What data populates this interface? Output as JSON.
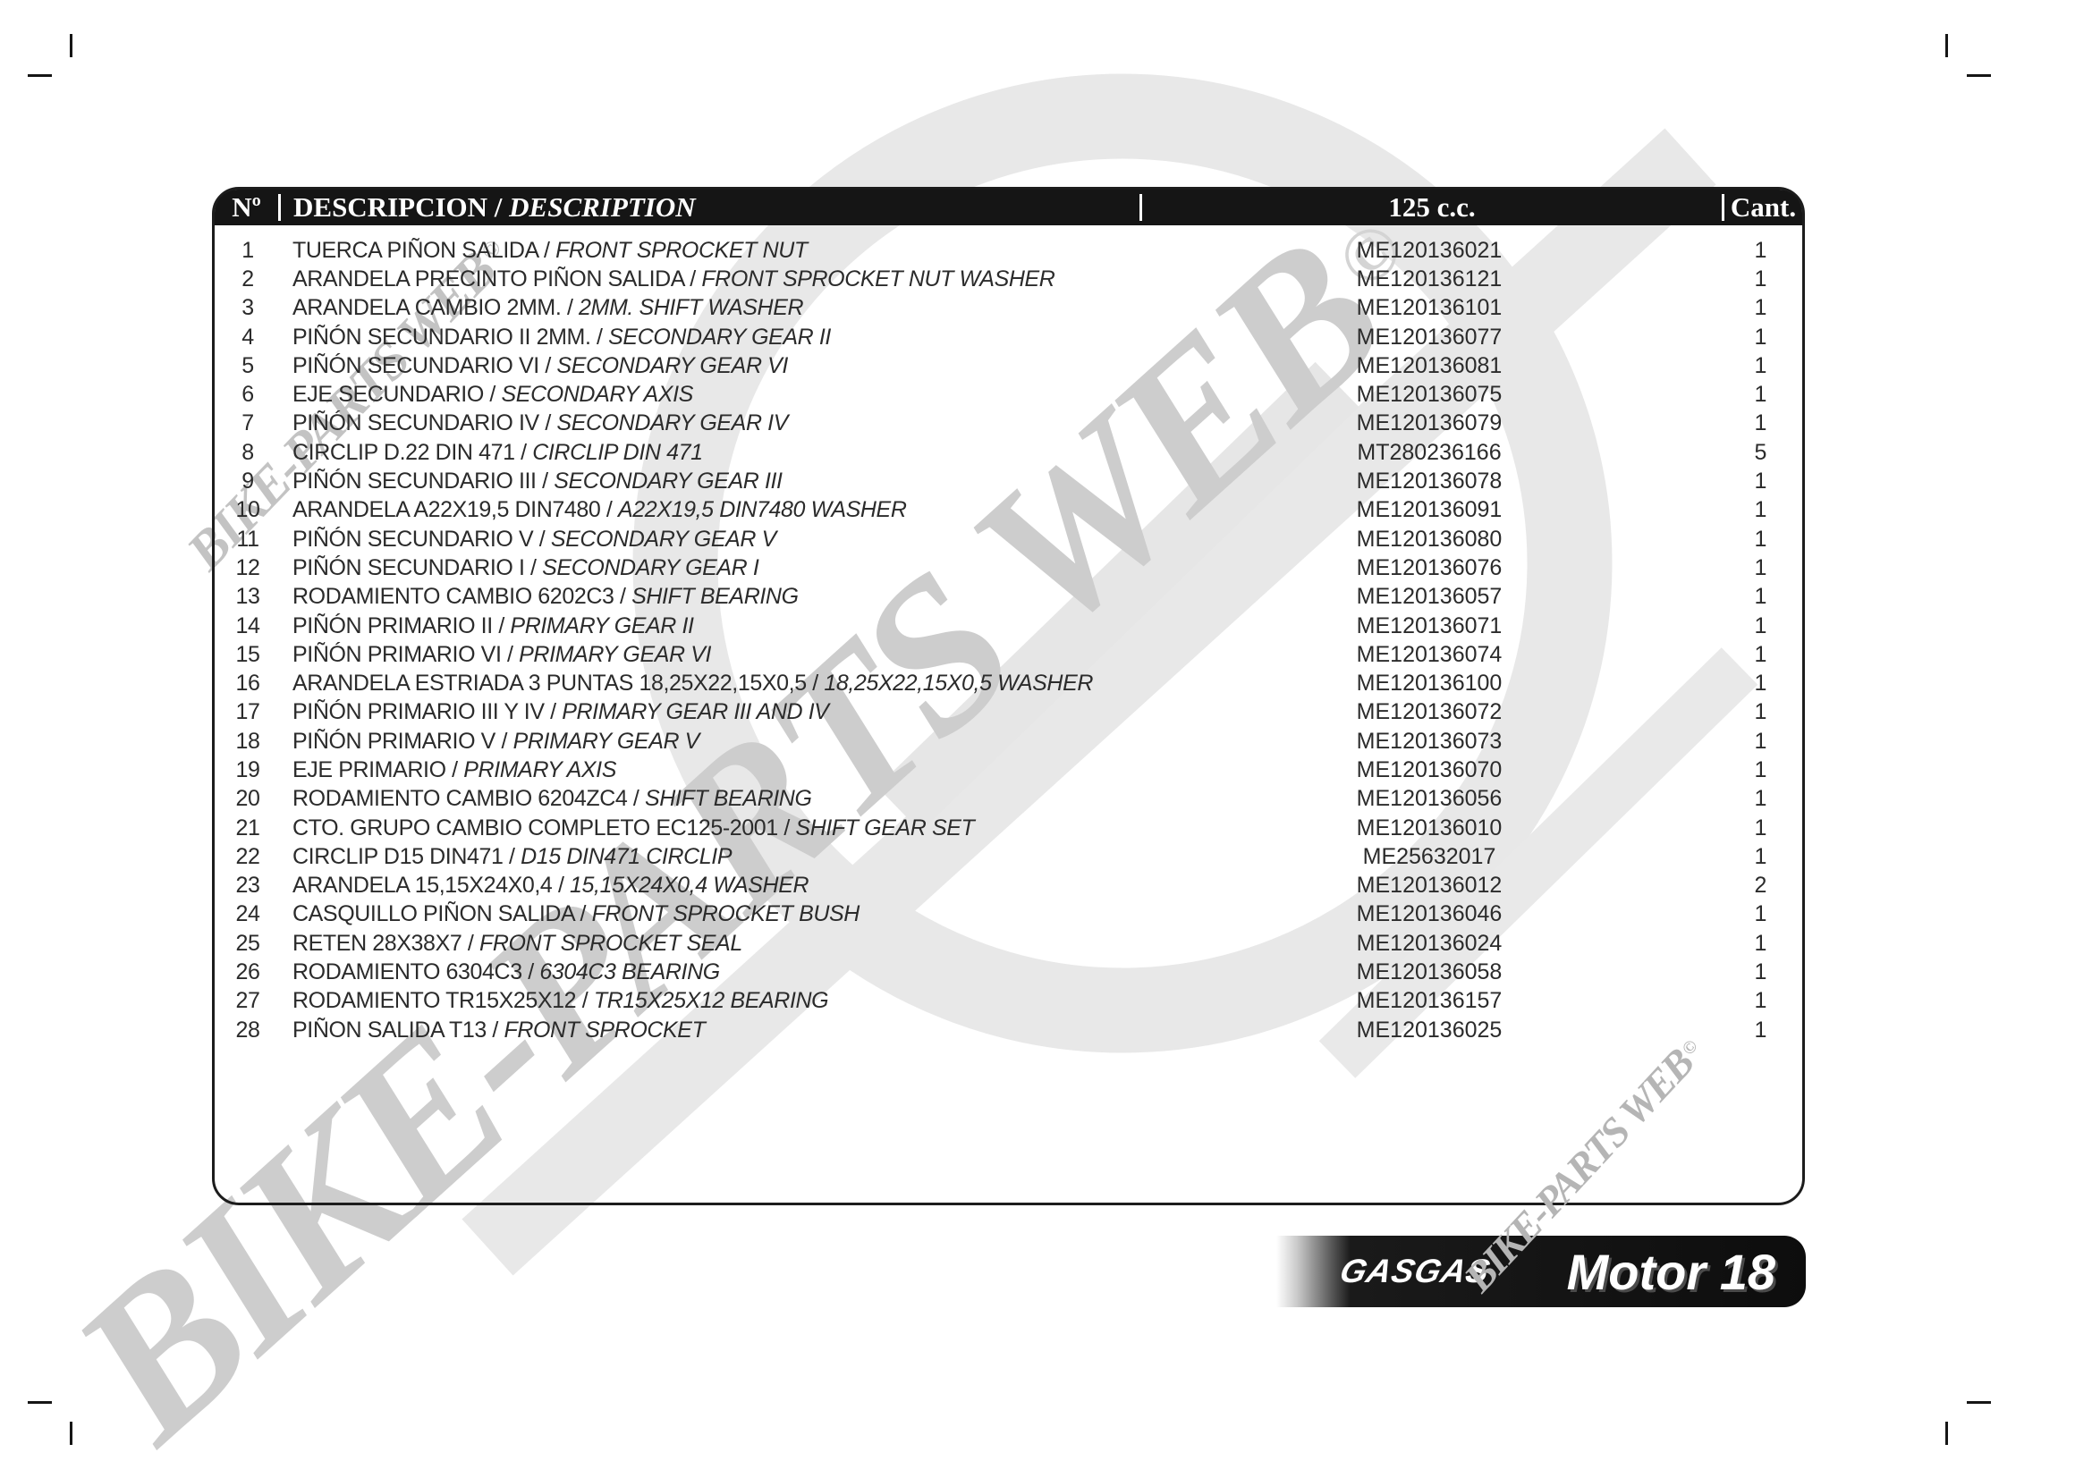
{
  "table": {
    "separator": "/",
    "header": {
      "no": "Nº",
      "description_es": "DESCRIPCION",
      "description_en": "DESCRIPTION",
      "cc": "125 c.c.",
      "qty": "Cant."
    },
    "rows": [
      {
        "no": "1",
        "es": "TUERCA PIÑON SALIDA",
        "en": "FRONT SPROCKET NUT",
        "code": "ME120136021",
        "qty": "1"
      },
      {
        "no": "2",
        "es": "ARANDELA PRECINTO PIÑON SALIDA",
        "en": "FRONT SPROCKET NUT WASHER",
        "code": "ME120136121",
        "qty": "1"
      },
      {
        "no": "3",
        "es": "ARANDELA CAMBIO 2MM.",
        "en": "2MM. SHIFT WASHER",
        "code": "ME120136101",
        "qty": "1"
      },
      {
        "no": "4",
        "es": "PIÑÓN SECUNDARIO II 2MM.",
        "en": "SECONDARY GEAR II",
        "code": "ME120136077",
        "qty": "1"
      },
      {
        "no": "5",
        "es": "PIÑÓN SECUNDARIO VI",
        "en": "SECONDARY GEAR VI",
        "code": "ME120136081",
        "qty": "1"
      },
      {
        "no": "6",
        "es": "EJE SECUNDARIO",
        "en": "SECONDARY AXIS",
        "code": "ME120136075",
        "qty": "1"
      },
      {
        "no": "7",
        "es": "PIÑÓN SECUNDARIO IV",
        "en": "SECONDARY GEAR IV",
        "code": "ME120136079",
        "qty": "1"
      },
      {
        "no": "8",
        "es": "CIRCLIP D.22 DIN 471",
        "en": "CIRCLIP DIN 471",
        "code": "MT280236166",
        "qty": "5"
      },
      {
        "no": "9",
        "es": "PIÑÓN SECUNDARIO III",
        "en": "SECONDARY GEAR III",
        "code": "ME120136078",
        "qty": "1"
      },
      {
        "no": "10",
        "es": "ARANDELA A22X19,5 DIN7480",
        "en": "A22X19,5 DIN7480 WASHER",
        "code": "ME120136091",
        "qty": "1"
      },
      {
        "no": "11",
        "es": "PIÑÓN SECUNDARIO V",
        "en": "SECONDARY GEAR V",
        "code": "ME120136080",
        "qty": "1"
      },
      {
        "no": "12",
        "es": "PIÑÓN SECUNDARIO I",
        "en": "SECONDARY GEAR I",
        "code": "ME120136076",
        "qty": "1"
      },
      {
        "no": "13",
        "es": "RODAMIENTO CAMBIO 6202C3",
        "en": "SHIFT BEARING",
        "code": "ME120136057",
        "qty": "1"
      },
      {
        "no": "14",
        "es": "PIÑÓN PRIMARIO II",
        "en": "PRIMARY GEAR II",
        "code": "ME120136071",
        "qty": "1"
      },
      {
        "no": "15",
        "es": "PIÑÓN PRIMARIO VI",
        "en": "PRIMARY GEAR VI",
        "code": "ME120136074",
        "qty": "1"
      },
      {
        "no": "16",
        "es": "ARANDELA ESTRIADA 3 PUNTAS 18,25X22,15X0,5",
        "en": "18,25X22,15X0,5 WASHER",
        "code": "ME120136100",
        "qty": "1"
      },
      {
        "no": "17",
        "es": "PIÑÓN PRIMARIO III Y IV",
        "en": "PRIMARY GEAR III AND IV",
        "code": "ME120136072",
        "qty": "1"
      },
      {
        "no": "18",
        "es": "PIÑÓN PRIMARIO V",
        "en": "PRIMARY GEAR V",
        "code": "ME120136073",
        "qty": "1"
      },
      {
        "no": "19",
        "es": "EJE PRIMARIO",
        "en": "PRIMARY AXIS",
        "code": "ME120136070",
        "qty": "1"
      },
      {
        "no": "20",
        "es": "RODAMIENTO CAMBIO 6204ZC4",
        "en": "SHIFT BEARING",
        "code": "ME120136056",
        "qty": "1"
      },
      {
        "no": "21",
        "es": "CTO. GRUPO CAMBIO COMPLETO EC125-2001",
        "en": "SHIFT GEAR SET",
        "code": "ME120136010",
        "qty": "1"
      },
      {
        "no": "22",
        "es": "CIRCLIP D15 DIN471",
        "en": "D15 DIN471 CIRCLIP",
        "code": "ME25632017",
        "qty": "1"
      },
      {
        "no": "23",
        "es": "ARANDELA 15,15X24X0,4",
        "en": "15,15X24X0,4 WASHER",
        "code": "ME120136012",
        "qty": "2"
      },
      {
        "no": "24",
        "es": "CASQUILLO PIÑON SALIDA",
        "en": "FRONT SPROCKET BUSH",
        "code": "ME120136046",
        "qty": "1"
      },
      {
        "no": "25",
        "es": "RETEN 28X38X7",
        "en": "FRONT SPROCKET SEAL",
        "code": "ME120136024",
        "qty": "1"
      },
      {
        "no": "26",
        "es": "RODAMIENTO 6304C3",
        "en": "6304C3 BEARING",
        "code": "ME120136058",
        "qty": "1"
      },
      {
        "no": "27",
        "es": "RODAMIENTO TR15X25X12",
        "en": "TR15X25X12 BEARING",
        "code": "ME120136157",
        "qty": "1"
      },
      {
        "no": "28",
        "es": "PIÑON SALIDA T13",
        "en": "FRONT SPROCKET",
        "code": "ME120136025",
        "qty": "1"
      }
    ]
  },
  "footer": {
    "brand": "GASGAS",
    "model": "Motor 18"
  },
  "watermarks": {
    "large": {
      "text": "BIKE-PARTS WEB",
      "mark": "©"
    },
    "top_left": {
      "text": "BIKE-PARTS WEB",
      "mark": "©"
    },
    "bottom_right": {
      "text": "BIKE-PARTS WEB",
      "mark": "©"
    }
  },
  "colors": {
    "header_bar": "#151515",
    "footer_bar": "#0d0d0d",
    "watermark_gray": "#cdcdcd",
    "swoosh_gray": "#e8e8e8"
  }
}
